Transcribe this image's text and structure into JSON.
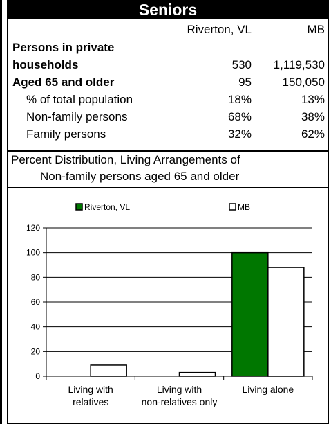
{
  "header": {
    "title": "Seniors"
  },
  "columns": {
    "col1": "Riverton, VL",
    "col2": "MB"
  },
  "rows": [
    {
      "label": "Persons in private",
      "v1": "",
      "v2": ""
    },
    {
      "label": "households",
      "v1": "530",
      "v2": "1,119,530"
    },
    {
      "label": "Aged 65 and older",
      "v1": "95",
      "v2": "150,050"
    },
    {
      "label": "% of total population",
      "v1": "18%",
      "v2": "13%"
    },
    {
      "label": "Non-family persons",
      "v1": "68%",
      "v2": "38%"
    },
    {
      "label": "Family persons",
      "v1": "32%",
      "v2": "62%"
    }
  ],
  "distribution": {
    "line1": "Percent Distribution, Living Arrangements of",
    "line2": "Non-family persons aged 65 and older"
  },
  "chart_data": {
    "type": "bar",
    "categories": [
      [
        "Living with",
        "relatives"
      ],
      [
        "Living with",
        "non-relatives only"
      ],
      [
        "Living alone"
      ]
    ],
    "series": [
      {
        "name": "Riverton, VL",
        "values": [
          0,
          0,
          100
        ],
        "color": "#007700"
      },
      {
        "name": "MB",
        "values": [
          9,
          3,
          88
        ],
        "color": "#ffffff"
      }
    ],
    "ylim": [
      0,
      120
    ],
    "yticks": [
      0,
      20,
      40,
      60,
      80,
      100,
      120
    ],
    "grid": true,
    "legend": "top"
  }
}
